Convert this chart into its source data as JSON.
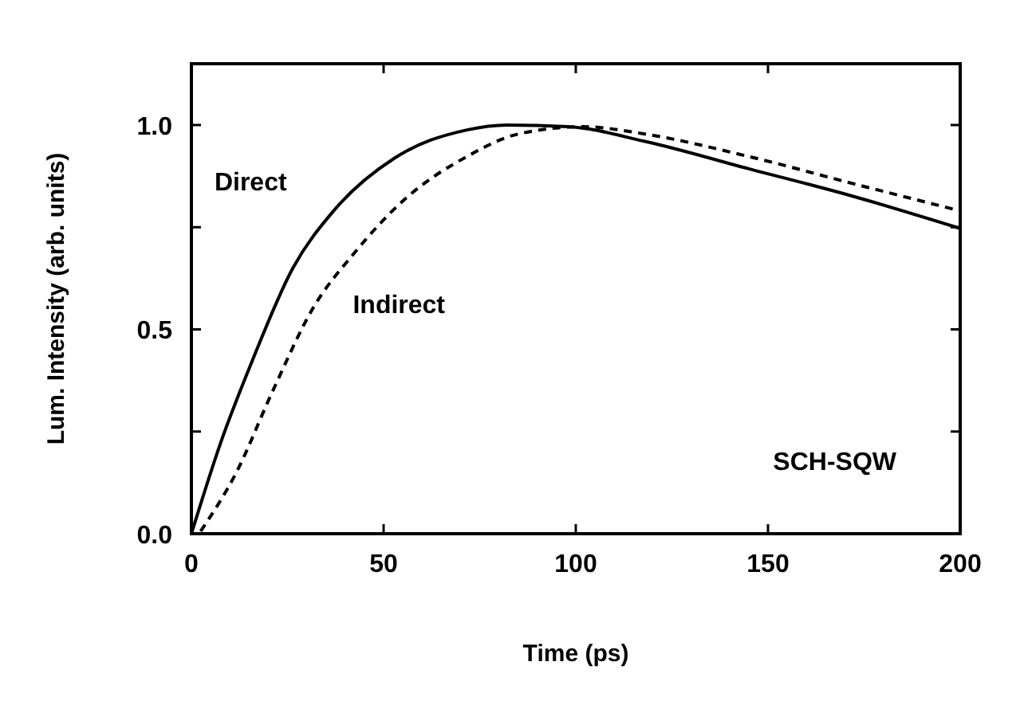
{
  "chart_data": {
    "type": "line",
    "xlabel": "Time (ps)",
    "ylabel": "Lum. Intensity (arb. units)",
    "xlim": [
      0,
      200
    ],
    "xticks": [
      0,
      50,
      100,
      150,
      200
    ],
    "ylim": [
      0,
      1.15
    ],
    "yticks": [
      {
        "value": 0,
        "label": "0.0"
      },
      {
        "value": 0.25,
        "label": null
      },
      {
        "value": 0.5,
        "label": "0.5"
      },
      {
        "value": 0.75,
        "label": null
      },
      {
        "value": 1,
        "label": "1.0"
      }
    ],
    "grid": false,
    "annotations": [
      "SCH-SQW"
    ],
    "series": [
      {
        "name": "Direct",
        "color": "#000000",
        "line_style": "solid",
        "x": [
          0,
          7.7,
          15.7,
          26.4,
          37,
          53,
          71.7,
          82,
          98,
          118,
          145,
          172,
          200
        ],
        "values": [
          0,
          0.225,
          0.42,
          0.65,
          0.79,
          0.92,
          0.988,
          1.0,
          0.996,
          0.96,
          0.893,
          0.826,
          0.747
        ]
      },
      {
        "name": "Indirect",
        "color": "#000000",
        "line_style": "dashed",
        "x": [
          2.4,
          11.7,
          21,
          31.7,
          42.4,
          55.7,
          71.7,
          85,
          102,
          118,
          145,
          172,
          200
        ],
        "values": [
          0.006,
          0.15,
          0.346,
          0.553,
          0.687,
          0.82,
          0.923,
          0.978,
          0.996,
          0.978,
          0.923,
          0.857,
          0.79
        ]
      }
    ]
  }
}
